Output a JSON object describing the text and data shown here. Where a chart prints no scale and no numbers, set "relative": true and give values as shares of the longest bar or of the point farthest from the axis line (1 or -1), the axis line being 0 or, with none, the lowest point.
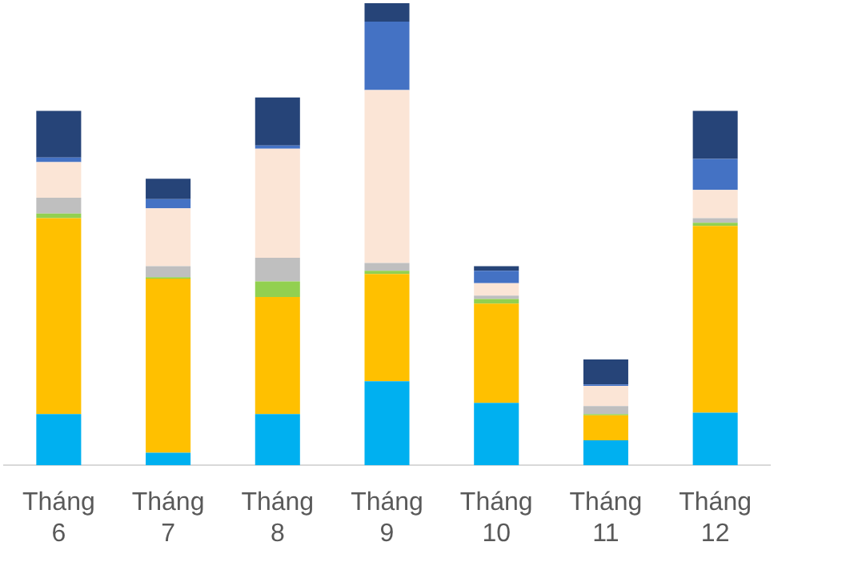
{
  "chart_data": {
    "type": "bar",
    "stacked": true,
    "relative": true,
    "grid": false,
    "legend": false,
    "categories": [
      "Tháng 6",
      "Tháng 7",
      "Tháng 8",
      "Tháng 9",
      "Tháng 10",
      "Tháng 11",
      "Tháng 12"
    ],
    "series": [
      {
        "color": "#00b0f0",
        "values": [
          0.111,
          0.027,
          0.111,
          0.182,
          0.135,
          0.054,
          0.114
        ]
      },
      {
        "color": "#ffc000",
        "values": [
          0.424,
          0.377,
          0.253,
          0.232,
          0.215,
          0.054,
          0.404
        ]
      },
      {
        "color": "#92d050",
        "values": [
          0.01,
          0.003,
          0.034,
          0.007,
          0.01,
          0.003,
          0.007
        ]
      },
      {
        "color": "#bfbfbf",
        "values": [
          0.034,
          0.024,
          0.051,
          0.017,
          0.007,
          0.017,
          0.01
        ]
      },
      {
        "color": "#fbe5d6",
        "values": [
          0.077,
          0.125,
          0.236,
          0.374,
          0.027,
          0.044,
          0.061
        ]
      },
      {
        "color": "#4472c4",
        "values": [
          0.01,
          0.02,
          0.007,
          0.148,
          0.027,
          0.003,
          0.067
        ]
      },
      {
        "color": "#264478",
        "values": [
          0.101,
          0.044,
          0.104,
          0.04,
          0.01,
          0.054,
          0.104
        ]
      }
    ]
  }
}
